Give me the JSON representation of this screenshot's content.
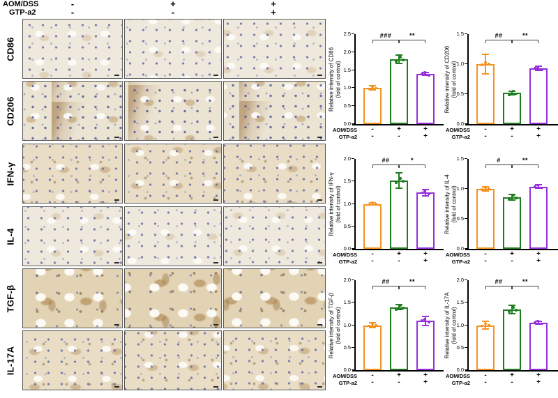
{
  "ihc_panel": {
    "treatment_rows": [
      {
        "label": "AOM/DSS",
        "symbols": [
          "-",
          "+",
          "+"
        ]
      },
      {
        "label": "GTP-a2",
        "symbols": [
          "-",
          "-",
          "+"
        ]
      }
    ],
    "rows": [
      {
        "label": "CD86",
        "stain": "pale"
      },
      {
        "label": "CD206",
        "stain": "mixed"
      },
      {
        "label": "IFN-γ",
        "stain": "tan"
      },
      {
        "label": "IL-4",
        "stain": "pale"
      },
      {
        "label": "TGF-β",
        "stain": "brown"
      },
      {
        "label": "IL-17A",
        "stain": "tan"
      }
    ]
  },
  "chart_common": {
    "group_labels": [
      "AOM/DSS",
      "GTP-a2"
    ],
    "group_symbols": [
      [
        "-",
        "+",
        "+"
      ],
      [
        "-",
        "-",
        "+"
      ]
    ],
    "bar_colors": [
      "#F6921E",
      "#1E7D1E",
      "#9530DC"
    ],
    "bracket_color": "#3d3d3d",
    "axis_color": "#000000"
  },
  "chart_data": [
    {
      "type": "bar",
      "marker": "CD86",
      "ylabel": "Relative intensity of CD86",
      "ylabel2": "(fold of control)",
      "ylim": [
        0,
        2.5
      ],
      "yticks": [
        "0.0",
        "0.5",
        "1.0",
        "1.5",
        "2.0",
        "2.5"
      ],
      "values": [
        1.0,
        1.8,
        1.4
      ],
      "errors": [
        0.06,
        0.11,
        0.04
      ],
      "significance": [
        {
          "between": [
            0,
            1
          ],
          "label": "###"
        },
        {
          "between": [
            1,
            2
          ],
          "label": "**"
        }
      ]
    },
    {
      "type": "bar",
      "marker": "CD206",
      "ylabel": "Relative intensity of CD206",
      "ylabel2": "(fold of control)",
      "ylim": [
        0,
        1.5
      ],
      "yticks": [
        "0.0",
        "0.5",
        "1.0",
        "1.5"
      ],
      "values": [
        1.0,
        0.52,
        0.93
      ],
      "errors": [
        0.16,
        0.03,
        0.04
      ],
      "significance": [
        {
          "between": [
            0,
            1
          ],
          "label": "##"
        },
        {
          "between": [
            1,
            2
          ],
          "label": "**"
        }
      ]
    },
    {
      "type": "bar",
      "marker": "IFN-γ",
      "ylabel": "Relative intensity of IFN-γ",
      "ylabel2": "(fold of control)",
      "ylim": [
        0,
        2.0
      ],
      "yticks": [
        "0.0",
        "0.5",
        "1.0",
        "1.5",
        "2.0"
      ],
      "values": [
        1.0,
        1.52,
        1.25
      ],
      "errors": [
        0.02,
        0.17,
        0.07
      ],
      "significance": [
        {
          "between": [
            0,
            1
          ],
          "label": "##"
        },
        {
          "between": [
            1,
            2
          ],
          "label": "*"
        }
      ]
    },
    {
      "type": "bar",
      "marker": "IL-4",
      "ylabel": "Relative intensity of IL-4",
      "ylabel2": "(fold of control)",
      "ylim": [
        0,
        1.5
      ],
      "yticks": [
        "0.0",
        "0.5",
        "1.0",
        "1.5"
      ],
      "values": [
        1.0,
        0.86,
        1.04
      ],
      "errors": [
        0.03,
        0.05,
        0.03
      ],
      "significance": [
        {
          "between": [
            0,
            1
          ],
          "label": "#"
        },
        {
          "between": [
            1,
            2
          ],
          "label": "**"
        }
      ]
    },
    {
      "type": "bar",
      "marker": "TGF-β",
      "ylabel": "Relative intensity of TGF-β",
      "ylabel2": "(fold of control)",
      "ylim": [
        0,
        2.0
      ],
      "yticks": [
        "0.0",
        "0.5",
        "1.0",
        "1.5",
        "2.0"
      ],
      "values": [
        1.0,
        1.4,
        1.1
      ],
      "errors": [
        0.06,
        0.05,
        0.1
      ],
      "significance": [
        {
          "between": [
            0,
            1
          ],
          "label": "##"
        },
        {
          "between": [
            1,
            2
          ],
          "label": "**"
        }
      ]
    },
    {
      "type": "bar",
      "marker": "IL-17A",
      "ylabel": "Relative intensity of IL-17A",
      "ylabel2": "(fold of control)",
      "ylim": [
        0,
        2.0
      ],
      "yticks": [
        "0.0",
        "0.5",
        "1.0",
        "1.5",
        "2.0"
      ],
      "values": [
        1.0,
        1.35,
        1.06
      ],
      "errors": [
        0.08,
        0.09,
        0.03
      ],
      "significance": [
        {
          "between": [
            0,
            1
          ],
          "label": "##"
        },
        {
          "between": [
            1,
            2
          ],
          "label": "**"
        }
      ]
    }
  ]
}
